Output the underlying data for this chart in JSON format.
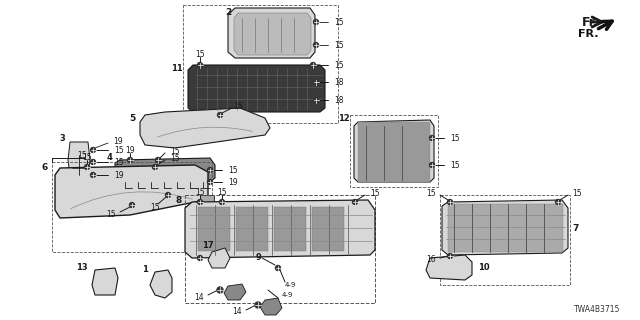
{
  "bg_color": "#ffffff",
  "diagram_code": "TWA4B3715",
  "line_color": "#1a1a1a",
  "text_color": "#1a1a1a",
  "gray_fill": "#d8d8d8",
  "dark_fill": "#555555",
  "medium_fill": "#aaaaaa"
}
